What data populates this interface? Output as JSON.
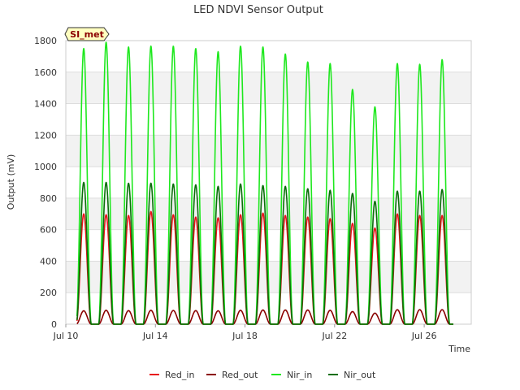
{
  "chart_data": {
    "type": "line",
    "title": "LED NDVI Sensor Output",
    "xlabel": "Time",
    "ylabel": "Output (mV)",
    "ylim": [
      0,
      1800
    ],
    "yticks": [
      0,
      200,
      400,
      600,
      800,
      1000,
      1200,
      1400,
      1600,
      1800
    ],
    "xlim": [
      10.0,
      28.1
    ],
    "xticks": [
      {
        "value": 10,
        "label": "Jul 10"
      },
      {
        "value": 14,
        "label": "Jul 14"
      },
      {
        "value": 18,
        "label": "Jul 18"
      },
      {
        "value": 22,
        "label": "Jul 22"
      },
      {
        "value": 26,
        "label": "Jul 26"
      }
    ],
    "badge": "SI_met",
    "legend_position": "bottom",
    "day_centers": [
      10.8,
      11.8,
      12.8,
      13.8,
      14.8,
      15.8,
      16.8,
      17.8,
      18.8,
      19.8,
      20.8,
      21.8,
      22.8,
      23.8,
      24.8,
      25.8,
      26.8
    ],
    "series": [
      {
        "name": "Red_in",
        "color": "#e8131a",
        "peaks": [
          700,
          695,
          690,
          715,
          695,
          680,
          675,
          695,
          705,
          690,
          680,
          670,
          640,
          610,
          700,
          690,
          690
        ]
      },
      {
        "name": "Red_out",
        "color": "#8b0000",
        "peaks": [
          85,
          88,
          86,
          88,
          87,
          86,
          85,
          88,
          90,
          90,
          90,
          88,
          80,
          70,
          92,
          92,
          92
        ]
      },
      {
        "name": "Nir_in",
        "color": "#1ee81e",
        "peaks": [
          1750,
          1790,
          1760,
          1765,
          1765,
          1750,
          1730,
          1765,
          1760,
          1715,
          1665,
          1655,
          1490,
          1380,
          1655,
          1650,
          1680
        ]
      },
      {
        "name": "Nir_out",
        "color": "#0a6e0a",
        "peaks": [
          900,
          900,
          895,
          895,
          890,
          885,
          875,
          890,
          880,
          875,
          860,
          850,
          830,
          780,
          845,
          845,
          855
        ]
      }
    ]
  }
}
